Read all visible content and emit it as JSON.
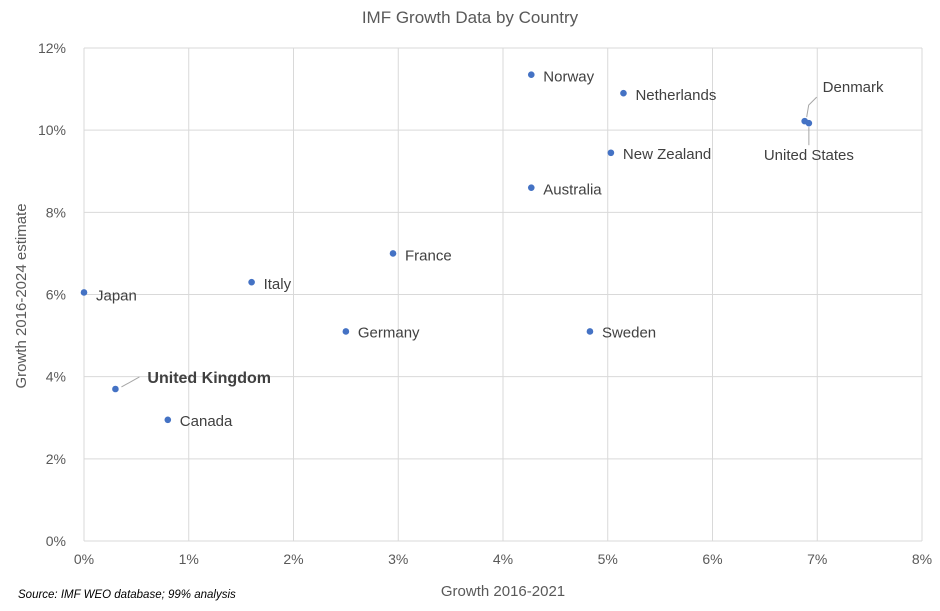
{
  "chart_data": {
    "type": "scatter",
    "title": "IMF Growth Data by Country",
    "xlabel": "Growth 2016-2021",
    "ylabel": "Growth 2016-2024 estimate",
    "xlim": [
      0,
      8
    ],
    "ylim": [
      0,
      12
    ],
    "x_ticks": [
      0,
      1,
      2,
      3,
      4,
      5,
      6,
      7,
      8
    ],
    "y_ticks": [
      0,
      2,
      4,
      6,
      8,
      10,
      12
    ],
    "x_tick_labels": [
      "0%",
      "1%",
      "2%",
      "3%",
      "4%",
      "5%",
      "6%",
      "7%",
      "8%"
    ],
    "y_tick_labels": [
      "0%",
      "2%",
      "4%",
      "6%",
      "8%",
      "10%",
      "12%"
    ],
    "grid": true,
    "legend": "none",
    "points": [
      {
        "label": "Japan",
        "x": 0.0,
        "y": 6.05
      },
      {
        "label": "United Kingdom",
        "x": 0.3,
        "y": 3.7,
        "highlight": true
      },
      {
        "label": "Canada",
        "x": 0.8,
        "y": 2.95
      },
      {
        "label": "Italy",
        "x": 1.6,
        "y": 6.3
      },
      {
        "label": "Germany",
        "x": 2.5,
        "y": 5.1
      },
      {
        "label": "France",
        "x": 2.95,
        "y": 7.0
      },
      {
        "label": "Norway",
        "x": 4.27,
        "y": 11.35
      },
      {
        "label": "Australia",
        "x": 4.27,
        "y": 8.6
      },
      {
        "label": "Sweden",
        "x": 4.83,
        "y": 5.1
      },
      {
        "label": "New Zealand",
        "x": 5.03,
        "y": 9.45
      },
      {
        "label": "Netherlands",
        "x": 5.15,
        "y": 10.9
      },
      {
        "label": "Denmark",
        "x": 6.88,
        "y": 10.22
      },
      {
        "label": "United States",
        "x": 6.92,
        "y": 10.17
      }
    ]
  },
  "colors": {
    "marker": "#4472C4",
    "highlight_label": "#E00000",
    "grid": "#D9D9D9",
    "text": "#595959"
  },
  "source": "Source: IMF WEO database; 99% analysis"
}
